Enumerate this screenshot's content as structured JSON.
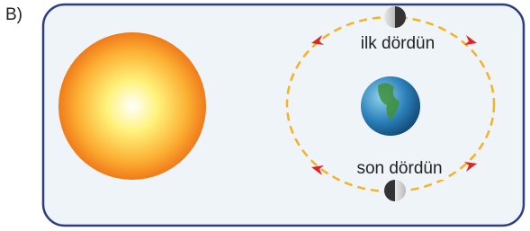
{
  "label": "B)",
  "moon_phases": {
    "top": "ilk dördün",
    "bottom": "son dördün"
  }
}
